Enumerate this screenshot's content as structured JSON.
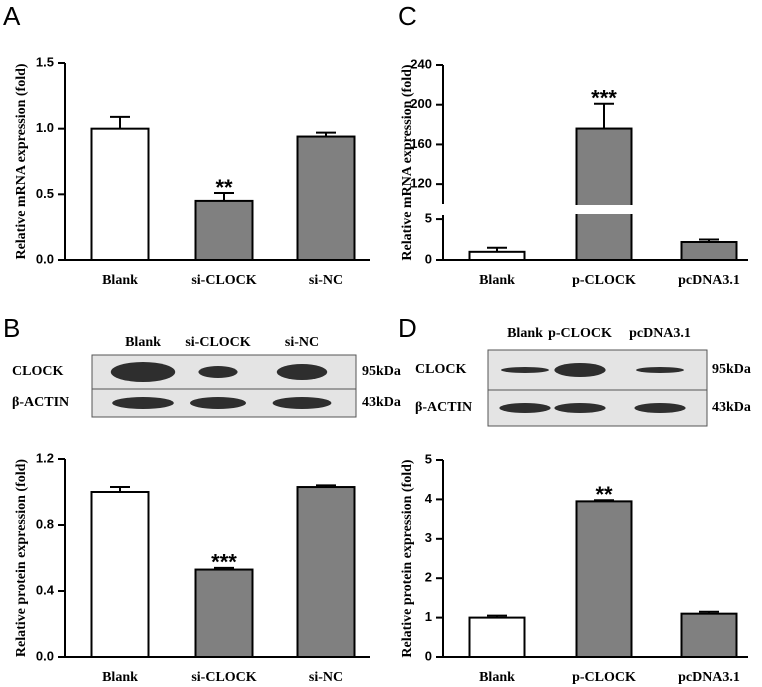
{
  "chart_data": [
    {
      "type": "bar",
      "panel": "A",
      "ylabel": "Relative mRNA expression (fold)",
      "categories": [
        "Blank",
        "si-CLOCK",
        "si-NC"
      ],
      "values": [
        1.0,
        0.45,
        0.94
      ],
      "errors": [
        0.09,
        0.06,
        0.03
      ],
      "colors": [
        "#ffffff",
        "#808080",
        "#808080"
      ],
      "significance": [
        null,
        "**",
        null
      ],
      "ylim": [
        0,
        1.5
      ],
      "yticks": [
        {
          "value": 0,
          "label": "0.0"
        },
        {
          "value": 0.5,
          "label": "0.5"
        },
        {
          "value": 1,
          "label": "1.0"
        },
        {
          "value": 1.5,
          "label": "1.5"
        }
      ]
    },
    {
      "type": "bar",
      "panel": "C",
      "ylabel": "Relative mRNA expression (fold)",
      "categories": [
        "Blank",
        "p-CLOCK",
        "pcDNA3.1"
      ],
      "values": [
        1.0,
        176,
        2.2
      ],
      "errors": [
        0.5,
        25,
        0.3
      ],
      "colors": [
        "#ffffff",
        "#808080",
        "#808080"
      ],
      "significance": [
        null,
        "***",
        null
      ],
      "ylim": [
        0,
        240
      ],
      "ysegments": [
        [
          0,
          5.5
        ],
        [
          100,
          240
        ]
      ],
      "yticks": [
        0,
        5,
        120,
        160,
        200,
        240
      ]
    },
    {
      "type": "bar",
      "panel": "B",
      "ylabel": "Relative protein expression (fold)",
      "categories": [
        "Blank",
        "si-CLOCK",
        "si-NC"
      ],
      "values": [
        1.0,
        0.53,
        1.03
      ],
      "errors": [
        0.03,
        0.01,
        0.01
      ],
      "colors": [
        "#ffffff",
        "#808080",
        "#808080"
      ],
      "significance": [
        null,
        "***",
        null
      ],
      "ylim": [
        0,
        1.2
      ],
      "yticks": [
        {
          "value": 0,
          "label": "0.0"
        },
        {
          "value": 0.4,
          "label": "0.4"
        },
        {
          "value": 0.8,
          "label": "0.8"
        },
        {
          "value": 1.2,
          "label": "1.2"
        }
      ],
      "blot": {
        "lanes": [
          "Blank",
          "si-CLOCK",
          "si-NC"
        ],
        "rows": [
          {
            "name": "CLOCK",
            "size": "95kDa"
          },
          {
            "name": "β-ACTIN",
            "size": "43kDa"
          }
        ]
      }
    },
    {
      "type": "bar",
      "panel": "D",
      "ylabel": "Relative protein expression (fold)",
      "categories": [
        "Blank",
        "p-CLOCK",
        "pcDNA3.1"
      ],
      "values": [
        1.0,
        3.95,
        1.1
      ],
      "errors": [
        0.05,
        0.03,
        0.05
      ],
      "colors": [
        "#ffffff",
        "#808080",
        "#808080"
      ],
      "significance": [
        null,
        "**",
        null
      ],
      "ylim": [
        0,
        5
      ],
      "yticks": [
        0,
        1,
        2,
        3,
        4,
        5
      ],
      "blot": {
        "lanes": [
          "Blank",
          "p-CLOCK",
          "pcDNA3.1"
        ],
        "rows": [
          {
            "name": "CLOCK",
            "size": "95kDa"
          },
          {
            "name": "β-ACTIN",
            "size": "43kDa"
          }
        ]
      }
    }
  ]
}
